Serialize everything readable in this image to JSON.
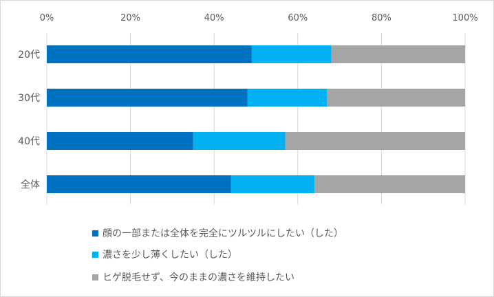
{
  "chart_data": {
    "type": "bar",
    "orientation": "horizontal",
    "stacked": "percent",
    "categories": [
      "20代",
      "30代",
      "40代",
      "全体"
    ],
    "x_ticks": [
      "0%",
      "20%",
      "40%",
      "60%",
      "80%",
      "100%"
    ],
    "xlim": [
      0,
      100
    ],
    "grid": true,
    "legend_position": "bottom",
    "series": [
      {
        "name": "顔の一部または全体を完全にツルツルにしたい（した）",
        "color": "#0070c0",
        "values": [
          49,
          48,
          35,
          44
        ]
      },
      {
        "name": "濃さを少し薄くしたい（した）",
        "color": "#00b0f0",
        "values": [
          19,
          19,
          22,
          20
        ]
      },
      {
        "name": "ヒゲ脱毛せず、今のままの濃さを維持したい",
        "color": "#a5a5a5",
        "values": [
          32,
          33,
          43,
          36
        ]
      }
    ]
  }
}
